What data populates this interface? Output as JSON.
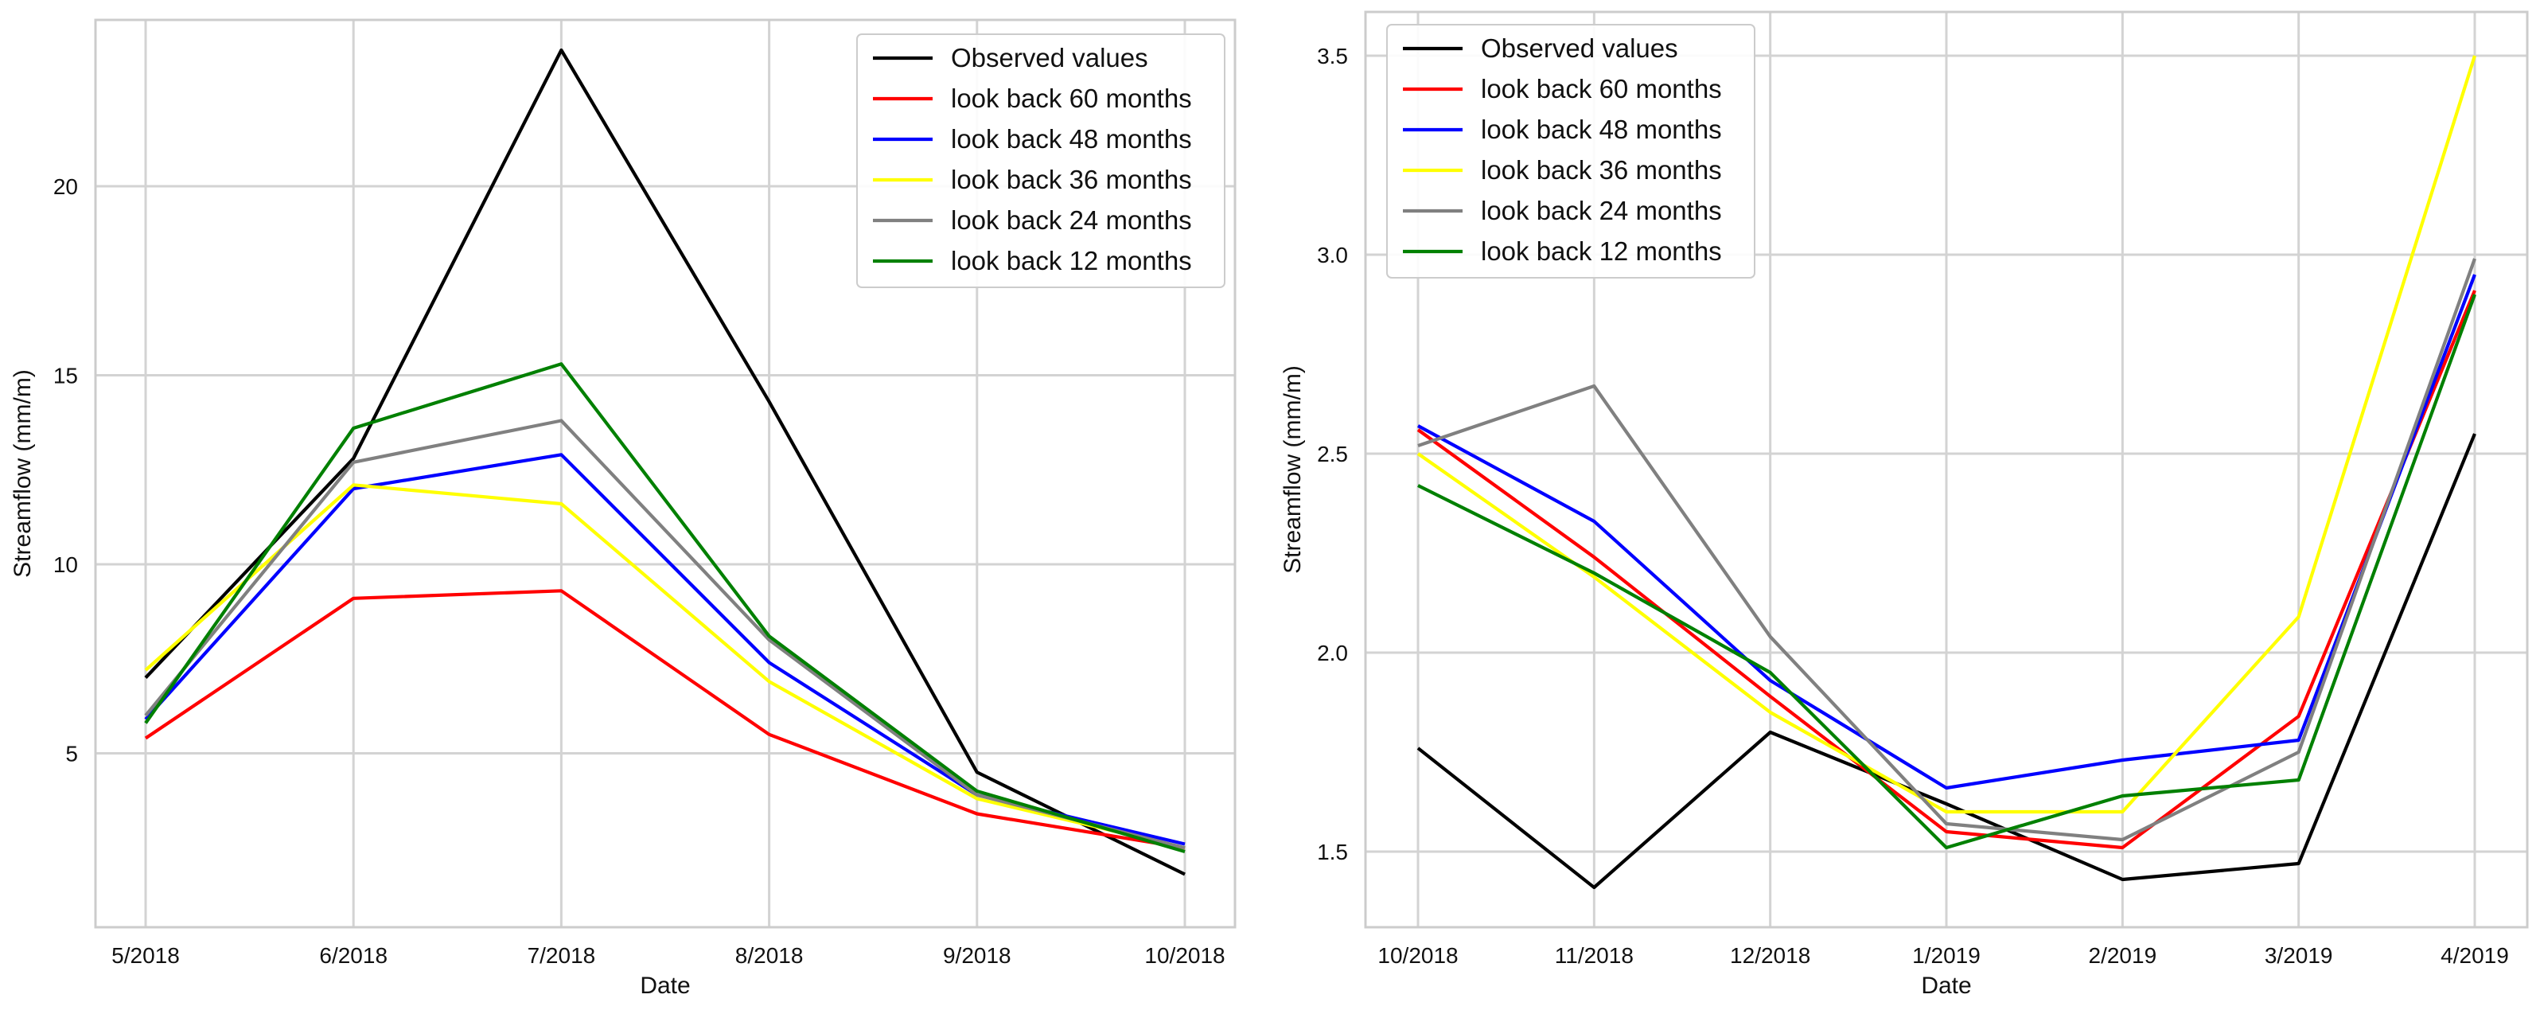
{
  "chart_data": [
    {
      "type": "line",
      "title": "",
      "xlabel": "Date",
      "ylabel": "Streamflow (mm/m)",
      "categories": [
        "5/2018",
        "6/2018",
        "7/2018",
        "8/2018",
        "9/2018",
        "10/2018"
      ],
      "ylim": [
        0.4,
        24.4
      ],
      "yticks": [
        5,
        10,
        15,
        20
      ],
      "ytick_labels": [
        "5",
        "10",
        "15",
        "20"
      ],
      "grid": true,
      "legend_position": "top-right",
      "series": [
        {
          "name": "Observed values",
          "color": "#000000",
          "values": [
            7.0,
            12.8,
            23.6,
            14.3,
            4.5,
            1.8
          ]
        },
        {
          "name": "look back 60 months",
          "color": "#ff0000",
          "values": [
            5.4,
            9.1,
            9.3,
            5.5,
            3.4,
            2.5
          ]
        },
        {
          "name": "look back 48 months",
          "color": "#0000ff",
          "values": [
            5.9,
            12.0,
            12.9,
            7.4,
            3.9,
            2.6
          ]
        },
        {
          "name": "look back 36 months",
          "color": "#ffff00",
          "values": [
            7.2,
            12.1,
            11.6,
            6.9,
            3.8,
            2.5
          ]
        },
        {
          "name": "look back 24 months",
          "color": "#808080",
          "values": [
            6.0,
            12.7,
            13.8,
            8.0,
            3.9,
            2.5
          ]
        },
        {
          "name": "look back 12 months",
          "color": "#008000",
          "values": [
            5.8,
            13.6,
            15.3,
            8.1,
            4.0,
            2.4
          ]
        }
      ]
    },
    {
      "type": "line",
      "title": "",
      "xlabel": "Date",
      "ylabel": "Streamflow (mm/m)",
      "categories": [
        "10/2018",
        "11/2018",
        "12/2018",
        "1/2019",
        "2/2019",
        "3/2019",
        "4/2019"
      ],
      "ylim": [
        1.31,
        3.61
      ],
      "yticks": [
        1.5,
        2.0,
        2.5,
        3.0,
        3.5
      ],
      "ytick_labels": [
        "1.5",
        "2.0",
        "2.5",
        "3.0",
        "3.5"
      ],
      "grid": true,
      "legend_position": "top-left",
      "series": [
        {
          "name": "Observed values",
          "color": "#000000",
          "values": [
            1.76,
            1.41,
            1.8,
            1.62,
            1.43,
            1.47,
            2.55
          ]
        },
        {
          "name": "look back 60 months",
          "color": "#ff0000",
          "values": [
            2.56,
            2.24,
            1.89,
            1.55,
            1.51,
            1.84,
            2.91
          ]
        },
        {
          "name": "look back 48 months",
          "color": "#0000ff",
          "values": [
            2.57,
            2.33,
            1.93,
            1.66,
            1.73,
            1.78,
            2.95
          ]
        },
        {
          "name": "look back 36 months",
          "color": "#ffff00",
          "values": [
            2.5,
            2.19,
            1.85,
            1.6,
            1.6,
            2.09,
            3.5
          ]
        },
        {
          "name": "look back 24 months",
          "color": "#808080",
          "values": [
            2.52,
            2.67,
            2.04,
            1.57,
            1.53,
            1.75,
            2.99
          ]
        },
        {
          "name": "look back 12 months",
          "color": "#008000",
          "values": [
            2.42,
            2.2,
            1.95,
            1.51,
            1.64,
            1.68,
            2.9
          ]
        }
      ]
    }
  ]
}
